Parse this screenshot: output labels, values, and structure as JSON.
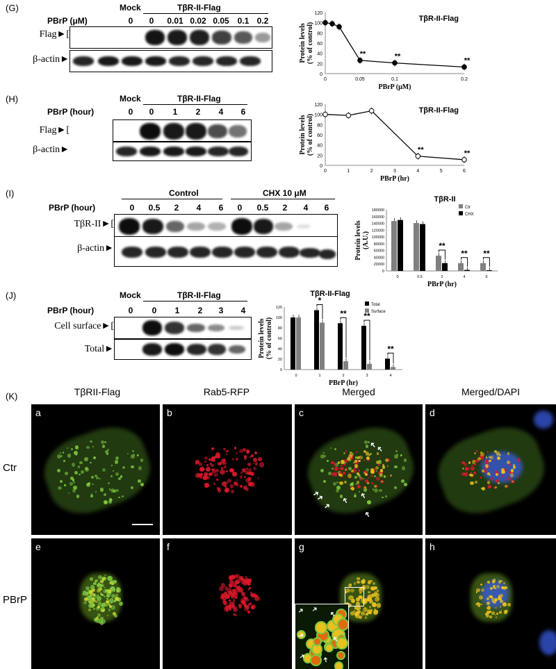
{
  "panels": {
    "G": {
      "letter": "(G)",
      "mock": "Mock",
      "group": "TβR-II-Flag",
      "treat_label": "PBrP (μM)",
      "lanes": [
        "0",
        "0",
        "0.01",
        "0.02",
        "0.05",
        "0.1",
        "0.2"
      ],
      "rows": [
        "Flag",
        "β-actin"
      ],
      "chart_data": {
        "type": "line",
        "title": "TβR-II-Flag",
        "xlabel": "PBrP (μM)",
        "ylabel": "Protein levels (% of control)",
        "x": [
          0,
          0.01,
          0.02,
          0.05,
          0.1,
          0.2
        ],
        "values": [
          100,
          98,
          92,
          26,
          21,
          13
        ],
        "marker": "filled",
        "xlim": [
          0,
          0.2
        ],
        "ylim": [
          0,
          120
        ],
        "xticks": [
          "0",
          "0.05",
          "0.1",
          "0.2"
        ],
        "xtick_vals": [
          0,
          0.05,
          0.1,
          0.2
        ],
        "yticks": [
          "0",
          "20",
          "40",
          "60",
          "80",
          "100",
          "120"
        ],
        "annotations": [
          {
            "x": 0.05,
            "text": "**"
          },
          {
            "x": 0.1,
            "text": "**"
          },
          {
            "x": 0.2,
            "text": "**"
          }
        ]
      }
    },
    "H": {
      "letter": "(H)",
      "mock": "Mock",
      "group": "TβR-II-Flag",
      "treat_label": "PBrP (hour)",
      "lanes": [
        "0",
        "0",
        "1",
        "2",
        "4",
        "6"
      ],
      "rows": [
        "Flag",
        "β-actin"
      ],
      "chart_data": {
        "type": "line",
        "title": "TβR-II-Flag",
        "xlabel": "PBrP (hr)",
        "ylabel": "Protein levels (% of control)",
        "x": [
          0,
          1,
          2,
          4,
          6
        ],
        "values": [
          100,
          98,
          107,
          18,
          11
        ],
        "marker": "open",
        "xlim": [
          0,
          6
        ],
        "ylim": [
          0,
          120
        ],
        "xticks": [
          "0",
          "1",
          "2",
          "3",
          "4",
          "5",
          "6"
        ],
        "xtick_vals": [
          0,
          1,
          2,
          3,
          4,
          5,
          6
        ],
        "yticks": [
          "0",
          "20",
          "40",
          "60",
          "80",
          "100",
          "120"
        ],
        "annotations": [
          {
            "x": 4,
            "text": "**"
          },
          {
            "x": 6,
            "text": "**"
          }
        ]
      }
    },
    "I": {
      "letter": "(I)",
      "group_ctrl": "Control",
      "group_chx": "CHX 10 μM",
      "treat_label": "PBrP (hour)",
      "lanes": [
        "0",
        "0.5",
        "2",
        "4",
        "6",
        "0",
        "0.5",
        "2",
        "4",
        "6"
      ],
      "rows": [
        "TβR-II",
        "β-actin"
      ],
      "chart_data": {
        "type": "bar",
        "title": "TβR-II",
        "xlabel": "PBrP (hr)",
        "ylabel": "Protein levels (A.U.)",
        "categories": [
          "0",
          "0.5",
          "2",
          "4",
          "6"
        ],
        "series": [
          {
            "name": "Ctr",
            "values": [
              147000,
              141000,
              45000,
              23000,
              23000
            ],
            "color": "#808080"
          },
          {
            "name": "CHX",
            "values": [
              150000,
              138000,
              23000,
              3000,
              2000
            ],
            "color": "#000000"
          }
        ],
        "ylim": [
          0,
          180000
        ],
        "yticks": [
          "0",
          "20000",
          "40000",
          "60000",
          "80000",
          "100000",
          "120000",
          "140000",
          "160000",
          "180000"
        ],
        "annotations": [
          {
            "category": "2",
            "text": "**"
          },
          {
            "category": "4",
            "text": "**"
          },
          {
            "category": "6",
            "text": "**"
          }
        ]
      }
    },
    "J": {
      "letter": "(J)",
      "mock": "Mock",
      "group": "TβR-II-Flag",
      "treat_label": "PBrP (hour)",
      "lanes": [
        "0",
        "0",
        "1",
        "2",
        "3",
        "4"
      ],
      "rows": [
        "Cell surface",
        "Total"
      ],
      "chart_data": {
        "type": "bar",
        "title": "TβR-II-Flag",
        "xlabel": "PBrP (hr)",
        "ylabel": "Protein levels (% of control)",
        "categories": [
          "0",
          "1",
          "2",
          "3",
          "4"
        ],
        "series": [
          {
            "name": "Total",
            "values": [
              100,
              114,
              89,
              84,
              21
            ],
            "color": "#000000"
          },
          {
            "name": "Surface",
            "values": [
              100,
              90,
              16,
              11,
              5
            ],
            "color": "#808080"
          }
        ],
        "ylim": [
          0,
          120
        ],
        "yticks": [
          "0",
          "20",
          "40",
          "60",
          "80",
          "100",
          "120"
        ],
        "annotations": [
          {
            "category": "1",
            "text": "*"
          },
          {
            "category": "2",
            "text": "**"
          },
          {
            "category": "3",
            "text": "**"
          },
          {
            "category": "4",
            "text": "**"
          }
        ]
      }
    },
    "K": {
      "letter": "(K)",
      "columns": [
        "TβRII-Flag",
        "Rab5-RFP",
        "Merged",
        "Merged/DAPI"
      ],
      "rows": [
        "Ctr",
        "PBrP"
      ],
      "tiles": [
        "a",
        "b",
        "c",
        "d",
        "e",
        "f",
        "g",
        "h"
      ]
    }
  },
  "colors": {
    "green": "#7ec640",
    "red": "#d8182a",
    "blue": "#3a5be0",
    "yellow": "#e8c020"
  }
}
